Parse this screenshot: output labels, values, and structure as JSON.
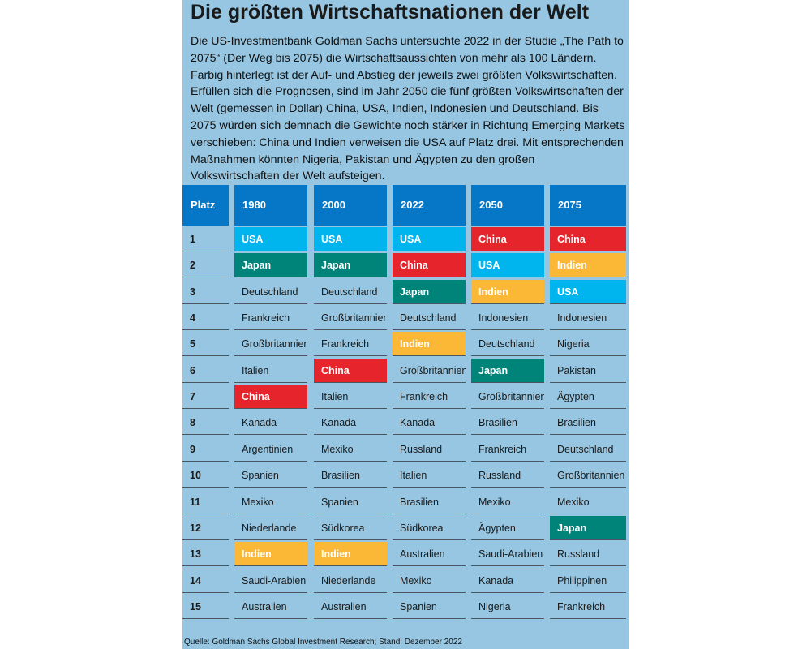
{
  "title": "Die größten Wirtschaftsnationen der Welt",
  "intro": "Die US-Investmentbank Goldman Sachs untersuchte 2022 in der Studie „The Path to 2075“ (Der Weg bis 2075) die Wirtschaftsaussichten von mehr als 100 Ländern. Farbig hinterlegt ist der Auf- und Abstieg der jeweils zwei größten Volkswirtschaften. Erfüllen sich die Prognosen, sind im Jahr 2050 die fünf größten Volkswirtschaften der Welt (ge­messen in Dollar) China, USA, Indien, Indonesien und Deutschland. Bis 2075 würden sich demnach die Gewichte noch stärker in Richtung Emerging Markets verschieben: China und Indien verweisen die USA auf Platz drei. Mit entsprechenden Maßnahmen könnten Nigeria, Pakistan und Ägypten zu den großen Volkswirtschaften der Welt aufsteigen.",
  "source": "Quelle: Goldman Sachs Global Investment Research; Stand: Dezember 2022",
  "colors": {
    "panel": "#96c6e2",
    "header": "#0577c6",
    "USA": "#00b4ee",
    "Japan": "#00847a",
    "China": "#e5242c",
    "Indien": "#fbb837"
  },
  "chart_data": {
    "type": "table",
    "rank_header": "Platz",
    "ranks": [
      "1",
      "2",
      "3",
      "4",
      "5",
      "6",
      "7",
      "8",
      "9",
      "10",
      "11",
      "12",
      "13",
      "14",
      "15"
    ],
    "highlighted": [
      "USA",
      "Japan",
      "China",
      "Indien"
    ],
    "columns": [
      {
        "year": "1980",
        "countries": [
          "USA",
          "Japan",
          "Deutschland",
          "Frankreich",
          "Großbritannien",
          "Italien",
          "China",
          "Kanada",
          "Argentinien",
          "Spanien",
          "Mexiko",
          "Niederlande",
          "Indien",
          "Saudi-Arabien",
          "Australien"
        ]
      },
      {
        "year": "2000",
        "countries": [
          "USA",
          "Japan",
          "Deutschland",
          "Großbritannien",
          "Frankreich",
          "China",
          "Italien",
          "Kanada",
          "Mexiko",
          "Brasilien",
          "Spanien",
          "Südkorea",
          "Indien",
          "Niederlande",
          "Australien"
        ]
      },
      {
        "year": "2022",
        "countries": [
          "USA",
          "China",
          "Japan",
          "Deutschland",
          "Indien",
          "Großbritannien",
          "Frankreich",
          "Kanada",
          "Russland",
          "Italien",
          "Brasilien",
          "Südkorea",
          "Australien",
          "Mexiko",
          "Spanien"
        ]
      },
      {
        "year": "2050",
        "countries": [
          "China",
          "USA",
          "Indien",
          "Indonesien",
          "Deutschland",
          "Japan",
          "Großbritannien",
          "Brasilien",
          "Frankreich",
          "Russland",
          "Mexiko",
          "Ägypten",
          "Saudi-Arabien",
          "Kanada",
          "Nigeria"
        ]
      },
      {
        "year": "2075",
        "countries": [
          "China",
          "Indien",
          "USA",
          "Indonesien",
          "Nigeria",
          "Pakistan",
          "Ägypten",
          "Brasilien",
          "Deutschland",
          "Großbritannien",
          "Mexiko",
          "Japan",
          "Russland",
          "Philippinen",
          "Frankreich"
        ]
      }
    ]
  }
}
